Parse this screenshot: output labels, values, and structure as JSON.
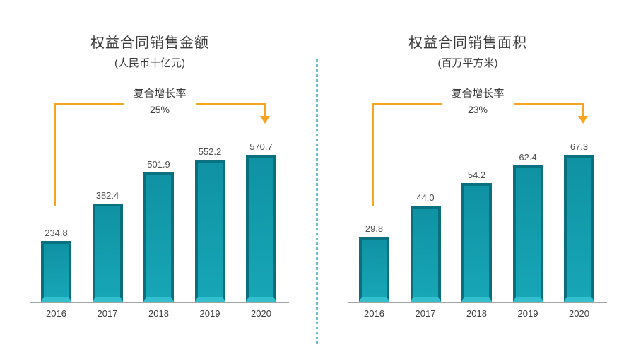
{
  "colors": {
    "accent_orange": "#F7A420",
    "bar_face": "#0F92A3",
    "bar_face_light": "#17A6B6",
    "bar_edge_dark": "#0B6E7D",
    "bar_edge_top": "#0A7181",
    "bar_bevel_bottom": "#33BFCE",
    "divider_blue": "#6FBCCD",
    "axis_gray": "#A5A5A5",
    "text_dark": "#3B3B3B",
    "text_value": "#4F4F4F"
  },
  "chart_data": [
    {
      "type": "bar",
      "title": "权益合同销售金额",
      "subtitle": "(人民币十亿元)",
      "annotation": {
        "label": "复合增长率",
        "value": "25%"
      },
      "categories": [
        "2016",
        "2017",
        "2018",
        "2019",
        "2020"
      ],
      "values": [
        234.8,
        382.4,
        501.9,
        552.2,
        570.7
      ],
      "value_labels": [
        "234.8",
        "382.4",
        "501.9",
        "552.2",
        "570.7"
      ],
      "xlabel": "",
      "ylabel": "",
      "ylim": [
        0,
        600
      ],
      "grid": false,
      "legend": "none",
      "bar_color": "#0F92A3"
    },
    {
      "type": "bar",
      "title": "权益合同销售面积",
      "subtitle": "(百万平方米)",
      "annotation": {
        "label": "复合增长率",
        "value": "23%"
      },
      "categories": [
        "2016",
        "2017",
        "2018",
        "2019",
        "2020"
      ],
      "values": [
        29.8,
        44.0,
        54.2,
        62.4,
        67.3
      ],
      "value_labels": [
        "29.8",
        "44.0",
        "54.2",
        "62.4",
        "67.3"
      ],
      "xlabel": "",
      "ylabel": "",
      "ylim": [
        0,
        70
      ],
      "grid": false,
      "legend": "none",
      "bar_color": "#0F92A3"
    }
  ]
}
